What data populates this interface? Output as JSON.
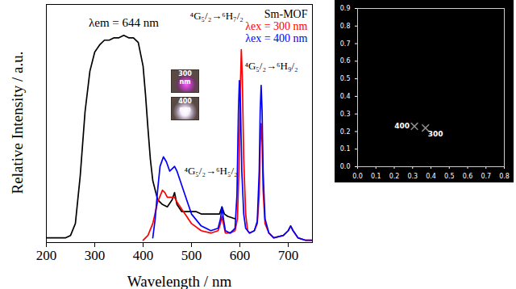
{
  "chart_data": [
    {
      "type": "line",
      "title": "Sm-MOF",
      "xlabel": "Wavelength / nm",
      "ylabel": "Relative Intensity / a.u.",
      "xlim": [
        200,
        750
      ],
      "xticks": [
        200,
        300,
        400,
        500,
        600,
        700
      ],
      "ylim": [
        0,
        100
      ],
      "tick_labels": "x",
      "legend": "top-right",
      "series": [
        {
          "name": "λem = 644 nm",
          "color": "#000000",
          "x": [
            200,
            220,
            240,
            250,
            260,
            270,
            280,
            290,
            300,
            310,
            320,
            330,
            340,
            350,
            360,
            370,
            380,
            390,
            400,
            405,
            410,
            415,
            420,
            430,
            440,
            450,
            460,
            465,
            470,
            480,
            490,
            500,
            510,
            520,
            530,
            540,
            550,
            558,
            563,
            568,
            575,
            590
          ],
          "values": [
            2,
            2,
            2,
            3,
            8,
            28,
            55,
            72,
            80,
            83,
            85,
            85,
            86,
            86,
            87,
            86,
            86,
            84,
            74,
            62,
            48,
            35,
            26,
            18,
            16,
            15,
            18,
            21,
            16,
            13,
            13,
            13,
            13,
            12,
            12,
            12,
            12,
            12,
            15,
            12,
            11,
            10
          ]
        },
        {
          "name": "λex = 300 nm",
          "color": "#ff0000",
          "x": [
            400,
            410,
            420,
            430,
            440,
            445,
            450,
            460,
            465,
            470,
            480,
            490,
            500,
            520,
            540,
            555,
            560,
            563,
            566,
            570,
            580,
            590,
            595,
            598,
            601,
            603,
            605,
            608,
            612,
            616,
            620,
            630,
            636,
            640,
            642,
            644,
            646,
            648,
            652,
            660,
            670,
            690,
            700,
            705,
            710,
            720,
            735,
            750
          ],
          "values": [
            1,
            3,
            8,
            17,
            22,
            21,
            19,
            19,
            19,
            17,
            14,
            11,
            8,
            5,
            4,
            5,
            8,
            11,
            8,
            4,
            4,
            5,
            10,
            30,
            65,
            81,
            70,
            35,
            12,
            5,
            4,
            5,
            8,
            20,
            40,
            50,
            42,
            22,
            8,
            4,
            2,
            3,
            5,
            7,
            5,
            2,
            1,
            1
          ]
        },
        {
          "name": "λex = 400 nm",
          "color": "#0000ff",
          "x": [
            420,
            425,
            430,
            435,
            442,
            448,
            455,
            460,
            465,
            470,
            480,
            490,
            500,
            520,
            540,
            555,
            560,
            563,
            566,
            570,
            580,
            590,
            594,
            597,
            599,
            601,
            604,
            608,
            612,
            620,
            630,
            636,
            640,
            642,
            644,
            646,
            648,
            652,
            660,
            670,
            690,
            700,
            705,
            710,
            720,
            735,
            750
          ],
          "values": [
            2,
            10,
            22,
            32,
            36,
            34,
            30,
            31,
            32,
            30,
            24,
            18,
            12,
            7,
            5,
            6,
            10,
            15,
            10,
            5,
            4,
            6,
            20,
            55,
            68,
            60,
            30,
            12,
            6,
            4,
            5,
            9,
            30,
            55,
            66,
            55,
            30,
            10,
            4,
            2,
            3,
            5,
            7,
            5,
            2,
            1,
            1
          ]
        }
      ],
      "annotations": [
        {
          "text": "⁴G₅/₂→⁶H₇/₂",
          "x": 552,
          "y": 95
        },
        {
          "text": "⁴G₅/₂→⁶H₉/₂",
          "x": 665,
          "y": 74
        },
        {
          "text": "⁴G₅/₂→⁶H₅/₂",
          "x": 540,
          "y": 30
        }
      ],
      "inset_labels": [
        "300 nm",
        "400 nm"
      ]
    },
    {
      "type": "scatter",
      "xlim": [
        0,
        0.8
      ],
      "xticks": [
        {
          "value": 0,
          "label": "0.0"
        },
        0.1,
        0.2,
        0.3,
        0.4,
        0.5,
        0.6,
        0.7,
        0.8
      ],
      "ylim": [
        0,
        0.9
      ],
      "yticks": [
        {
          "value": 0,
          "label": "0.0"
        },
        0.1,
        0.2,
        0.3,
        0.4,
        0.5,
        0.6,
        0.7,
        0.8,
        0.9
      ],
      "marker": "x",
      "series": [
        {
          "name": "400",
          "color": "#8c8c8c",
          "x": [
            0.31
          ],
          "values": [
            0.23
          ]
        },
        {
          "name": "300",
          "color": "#8c8c8c",
          "x": [
            0.37
          ],
          "values": [
            0.22
          ]
        }
      ]
    }
  ]
}
